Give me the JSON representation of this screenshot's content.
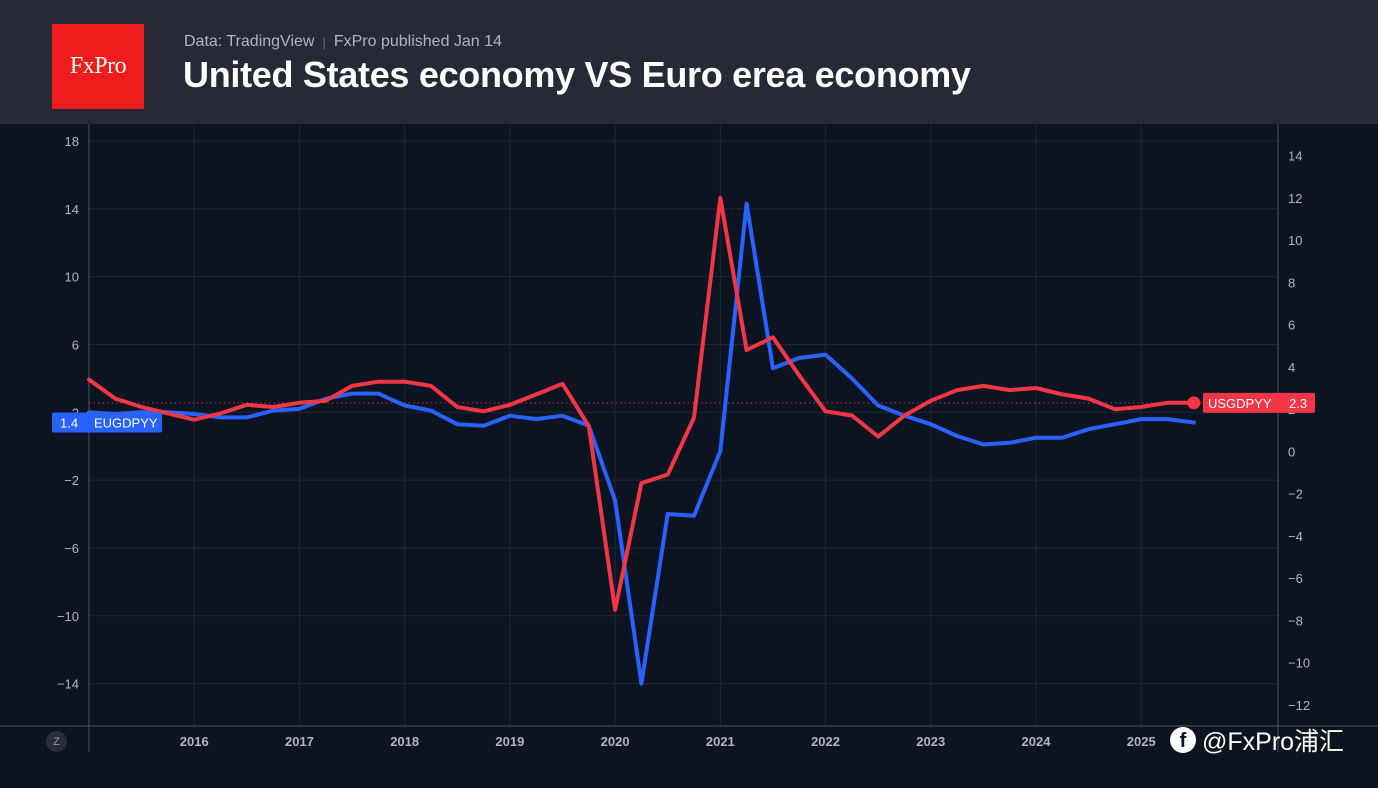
{
  "header": {
    "logo_text": "FxPro",
    "source": "Data: TradingView",
    "separator": "|",
    "published": "FxPro published Jan 14",
    "title": "United States economy VS Euro erea economy"
  },
  "controls": {
    "zoom_reset_label": "Z"
  },
  "watermark": {
    "icon": "facebook-icon",
    "icon_glyph": "f",
    "text": "@FxPro浦汇"
  },
  "colors": {
    "background": "#0c1421",
    "header": "#262a36",
    "brand_red": "#ee1c1c",
    "us_series": "#f23645",
    "eu_series": "#2962ff"
  },
  "chart_data": {
    "type": "line",
    "title": "United States economy VS Euro erea economy",
    "x_unit": "year",
    "x_ticks": [
      "2016",
      "2017",
      "2018",
      "2019",
      "2020",
      "2021",
      "2022",
      "2023",
      "2024",
      "2025"
    ],
    "left_axis": {
      "range": [
        -16.5,
        19
      ],
      "ticks": [
        18,
        14,
        10,
        6,
        2,
        -2,
        -6,
        -10,
        -14
      ],
      "tick_labels": [
        "18",
        "14",
        "10",
        "6",
        "2",
        "−2",
        "−6",
        "−10",
        "−14"
      ]
    },
    "right_axis": {
      "range": [
        -13,
        15.5
      ],
      "ticks": [
        14,
        12,
        10,
        8,
        6,
        4,
        2,
        0,
        -2,
        -4,
        -6,
        -8,
        -10,
        -12
      ],
      "tick_labels": [
        "14",
        "12",
        "10",
        "8",
        "6",
        "4",
        "2",
        "0",
        "−2",
        "−4",
        "−6",
        "−8",
        "−10",
        "−12"
      ]
    },
    "grid": true,
    "series": [
      {
        "name": "EUGDPYY",
        "axis": "left",
        "last_value": 1.4,
        "last_label": "1.4",
        "label_side": "left",
        "x": [
          2015.0,
          2015.25,
          2015.5,
          2015.75,
          2016.0,
          2016.25,
          2016.5,
          2016.75,
          2017.0,
          2017.25,
          2017.5,
          2017.75,
          2018.0,
          2018.25,
          2018.5,
          2018.75,
          2019.0,
          2019.25,
          2019.5,
          2019.75,
          2020.0,
          2020.25,
          2020.5,
          2020.75,
          2021.0,
          2021.25,
          2021.5,
          2021.75,
          2022.0,
          2022.25,
          2022.5,
          2022.75,
          2023.0,
          2023.25,
          2023.5,
          2023.75,
          2024.0,
          2024.25,
          2024.5,
          2024.75,
          2025.0,
          2025.25,
          2025.5
        ],
        "values": [
          2.0,
          1.9,
          2.0,
          2.0,
          1.9,
          1.7,
          1.7,
          2.1,
          2.2,
          2.8,
          3.1,
          3.1,
          2.4,
          2.1,
          1.3,
          1.2,
          1.8,
          1.6,
          1.8,
          1.2,
          -3.2,
          -14.0,
          -4.0,
          -4.1,
          -0.3,
          14.3,
          4.6,
          5.2,
          5.4,
          4.0,
          2.4,
          1.8,
          1.3,
          0.6,
          0.1,
          0.2,
          0.5,
          0.5,
          1.0,
          1.3,
          1.6,
          1.6,
          1.4
        ]
      },
      {
        "name": "USGDPYY",
        "axis": "right",
        "last_value": 2.3,
        "last_label": "2.3",
        "label_side": "right",
        "x": [
          2015.0,
          2015.25,
          2015.5,
          2015.75,
          2016.0,
          2016.25,
          2016.5,
          2016.75,
          2017.0,
          2017.25,
          2017.5,
          2017.75,
          2018.0,
          2018.25,
          2018.5,
          2018.75,
          2019.0,
          2019.25,
          2019.5,
          2019.75,
          2020.0,
          2020.25,
          2020.5,
          2020.75,
          2021.0,
          2021.25,
          2021.5,
          2021.75,
          2022.0,
          2022.25,
          2022.5,
          2022.75,
          2023.0,
          2023.25,
          2023.5,
          2023.75,
          2024.0,
          2024.25,
          2024.5,
          2024.75,
          2025.0,
          2025.25,
          2025.5
        ],
        "values": [
          3.4,
          2.5,
          2.1,
          1.8,
          1.5,
          1.8,
          2.2,
          2.1,
          2.3,
          2.4,
          3.1,
          3.3,
          3.3,
          3.1,
          2.1,
          1.9,
          2.2,
          2.7,
          3.2,
          1.2,
          -7.5,
          -1.5,
          -1.1,
          1.6,
          12.0,
          4.8,
          5.4,
          3.6,
          1.9,
          1.7,
          0.7,
          1.7,
          2.4,
          2.9,
          3.1,
          2.9,
          3.0,
          2.7,
          2.5,
          2.0,
          2.1,
          2.3,
          2.3
        ]
      }
    ],
    "reference_line": {
      "axis": "right",
      "value": 2.3,
      "style": "dotted"
    }
  }
}
